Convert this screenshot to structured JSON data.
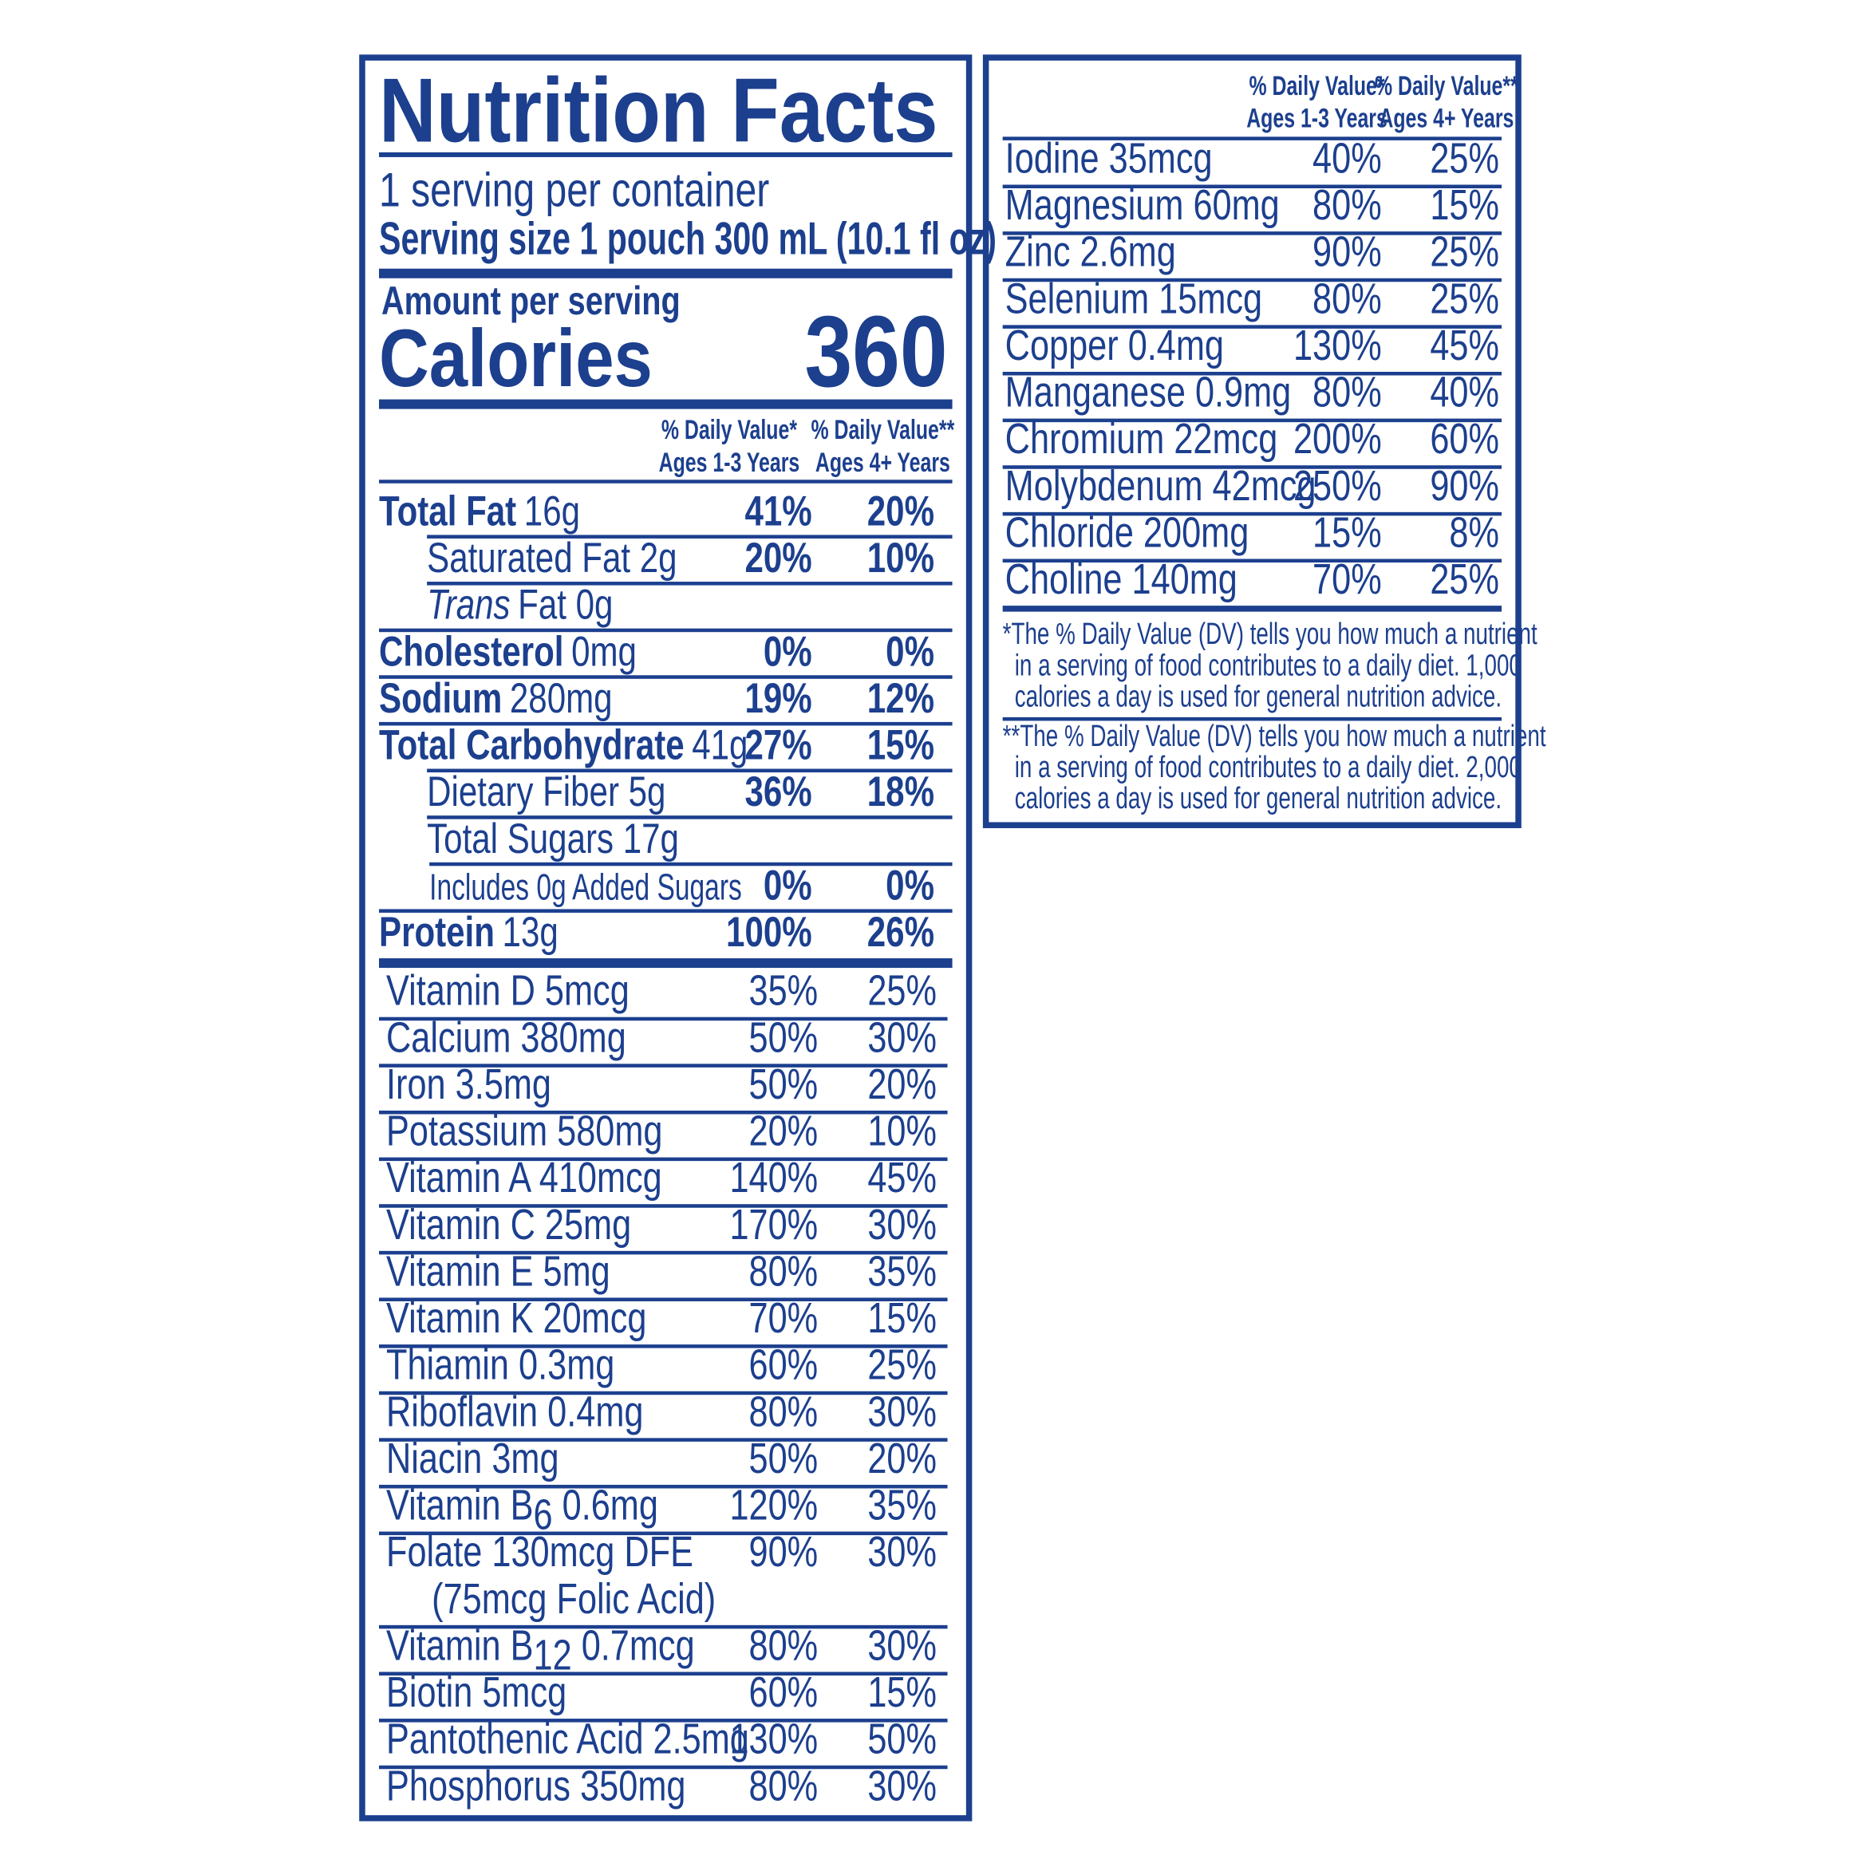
{
  "left": {
    "title": "Nutrition Facts",
    "servings": "1 serving per container",
    "serving_size": "Serving size 1 pouch 300 mL (10.1 fl oz)",
    "amount_label": "Amount per serving",
    "calories_label": "Calories",
    "calories_value": "360",
    "dv_headers": [
      [
        "% Daily Value*",
        "Ages 1-3 Years"
      ],
      [
        "% Daily Value**",
        "Ages 4+ Years"
      ]
    ],
    "nutrients": [
      {
        "name": "Total Fat",
        "amount": "16g",
        "dv1": "41%",
        "dv2": "20%"
      },
      {
        "name": "Saturated Fat 2g",
        "dv1": "20%",
        "dv2": "10%"
      },
      {
        "name": "Trans",
        "amount": "Fat 0g"
      },
      {
        "name": "Cholesterol",
        "amount": "0mg",
        "dv1": "0%",
        "dv2": "0%"
      },
      {
        "name": "Sodium",
        "amount": "280mg",
        "dv1": "19%",
        "dv2": "12%"
      },
      {
        "name": "Total Carbohydrate",
        "amount": "41g",
        "dv1": "27%",
        "dv2": "15%"
      },
      {
        "name": "Dietary Fiber 5g",
        "dv1": "36%",
        "dv2": "18%"
      },
      {
        "name": "Total Sugars 17g"
      },
      {
        "name": "Includes 0g Added Sugars",
        "dv1": "0%",
        "dv2": "0%"
      },
      {
        "name": "Protein",
        "amount": "13g",
        "dv1": "100%",
        "dv2": "26%"
      }
    ],
    "vitamins": [
      {
        "label": "Vitamin D 5mcg",
        "dv1": "35%",
        "dv2": "25%"
      },
      {
        "label": "Calcium 380mg",
        "dv1": "50%",
        "dv2": "30%"
      },
      {
        "label": "Iron 3.5mg",
        "dv1": "50%",
        "dv2": "20%"
      },
      {
        "label": "Potassium 580mg",
        "dv1": "20%",
        "dv2": "10%"
      },
      {
        "label": "Vitamin A 410mcg",
        "dv1": "140%",
        "dv2": "45%"
      },
      {
        "label": "Vitamin C 25mg",
        "dv1": "170%",
        "dv2": "30%"
      },
      {
        "label": "Vitamin E 5mg",
        "dv1": "80%",
        "dv2": "35%"
      },
      {
        "label": "Vitamin K 20mcg",
        "dv1": "70%",
        "dv2": "15%"
      },
      {
        "label": "Thiamin 0.3mg",
        "dv1": "60%",
        "dv2": "25%"
      },
      {
        "label": "Riboflavin 0.4mg",
        "dv1": "80%",
        "dv2": "30%"
      },
      {
        "label": "Niacin 3mg",
        "dv1": "50%",
        "dv2": "20%"
      },
      {
        "label": "Vitamin B",
        "sub": "6",
        "amount": " 0.6mg",
        "dv1": "120%",
        "dv2": "35%"
      },
      {
        "label": "Folate 130mcg DFE",
        "note": "(75mcg Folic Acid)",
        "dv1": "90%",
        "dv2": "30%"
      },
      {
        "label": "Vitamin B",
        "sub": "12",
        "amount": " 0.7mcg",
        "dv1": "80%",
        "dv2": "30%"
      },
      {
        "label": "Biotin 5mcg",
        "dv1": "60%",
        "dv2": "15%"
      },
      {
        "label": "Pantothenic Acid 2.5mg",
        "dv1": "130%",
        "dv2": "50%"
      },
      {
        "label": "Phosphorus 350mg",
        "dv1": "80%",
        "dv2": "30%"
      }
    ]
  },
  "right": {
    "dv_headers": [
      [
        "% Daily Value*",
        "Ages 1-3 Years"
      ],
      [
        "% Daily Value**",
        "Ages 4+ Years"
      ]
    ],
    "minerals": [
      {
        "label": "Iodine 35mcg",
        "dv1": "40%",
        "dv2": "25%"
      },
      {
        "label": "Magnesium 60mg",
        "dv1": "80%",
        "dv2": "15%"
      },
      {
        "label": "Zinc 2.6mg",
        "dv1": "90%",
        "dv2": "25%"
      },
      {
        "label": "Selenium 15mcg",
        "dv1": "80%",
        "dv2": "25%"
      },
      {
        "label": "Copper 0.4mg",
        "dv1": "130%",
        "dv2": "45%"
      },
      {
        "label": "Manganese 0.9mg",
        "dv1": "80%",
        "dv2": "40%"
      },
      {
        "label": "Chromium 22mcg",
        "dv1": "200%",
        "dv2": "60%"
      },
      {
        "label": "Molybdenum 42mcg",
        "dv1": "250%",
        "dv2": "90%"
      },
      {
        "label": "Chloride 200mg",
        "dv1": "15%",
        "dv2": "8%"
      },
      {
        "label": "Choline 140mg",
        "dv1": "70%",
        "dv2": "25%"
      }
    ],
    "footnotes": [
      [
        "*The % Daily Value (DV) tells you how much a nutrient",
        "in a serving of food contributes to a daily diet. 1,000",
        "calories a day is used for general nutrition advice."
      ],
      [
        "**The % Daily Value (DV) tells you how much a nutrient",
        "in a serving of food contributes to a daily diet. 2,000",
        "calories a day is used for general nutrition advice."
      ]
    ]
  }
}
